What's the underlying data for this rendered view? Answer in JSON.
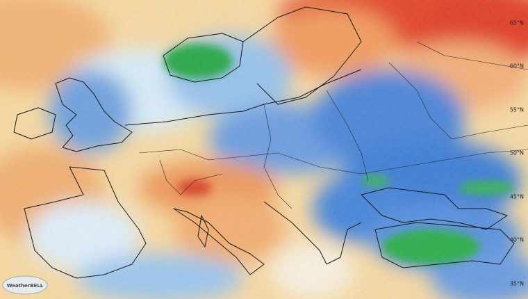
{
  "map": {
    "latitude_labels": [
      "65°N",
      "60°N",
      "55°N",
      "50°N",
      "45°N",
      "40°N",
      "35°N"
    ],
    "logo": "WeatherBELL"
  }
}
